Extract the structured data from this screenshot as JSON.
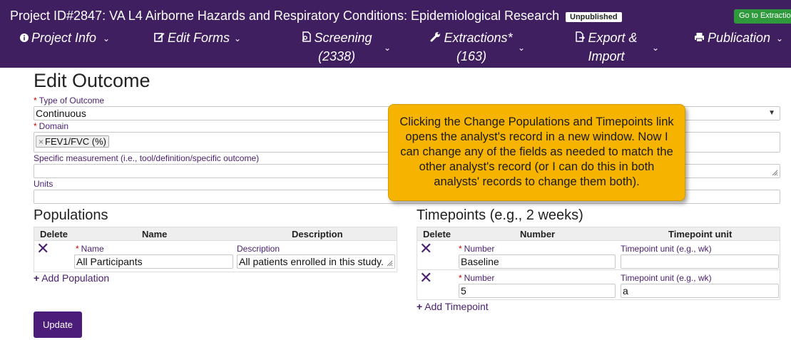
{
  "header": {
    "title": "Project ID#2847: VA L4 Airborne Hazards and Respiratory Conditions: Epidemiological Research",
    "badge": "Unpublished",
    "goto_button": "Go to Extractions"
  },
  "nav": {
    "project_info": "Project Info",
    "edit_forms": "Edit Forms",
    "screening_line1": "Screening",
    "screening_line2": "(2338)",
    "extractions_line1": "Extractions*",
    "extractions_line2": "(163)",
    "export_line1": "Export &",
    "export_line2": "Import",
    "publication": "Publication"
  },
  "form": {
    "heading": "Edit Outcome",
    "type_label": "Type of Outcome",
    "type_value": "Continuous",
    "domain_label": "Domain",
    "domain_chip": "FEV1/FVC (%)",
    "specific_label": "Specific measurement (i.e., tool/definition/specific outcome)",
    "specific_value": "",
    "units_label": "Units",
    "units_value": "",
    "update_button": "Update"
  },
  "populations": {
    "title": "Populations",
    "headers": {
      "delete": "Delete",
      "name": "Name",
      "description": "Description"
    },
    "rows": [
      {
        "name_label": "Name",
        "name_value": "All Participants",
        "desc_label": "Description",
        "desc_value": "All patients enrolled in this study."
      }
    ],
    "add_link": "Add Population"
  },
  "timepoints": {
    "title": "Timepoints (e.g., 2 weeks)",
    "headers": {
      "delete": "Delete",
      "number": "Number",
      "unit": "Timepoint unit"
    },
    "rows": [
      {
        "number_label": "Number",
        "number_value": "Baseline",
        "unit_label": "Timepoint unit (e.g., wk)",
        "unit_value": ""
      },
      {
        "number_label": "Number",
        "number_value": "5",
        "unit_label": "Timepoint unit (e.g., wk)",
        "unit_value": "a"
      }
    ],
    "add_link": "Add Timepoint"
  },
  "callout": {
    "text": "Clicking the Change Populations and Timepoints link opens the analyst's record in a new window. Now I can change any of the fields as needed to match the other analyst's record (or I can do this in both analysts' records to change them both)."
  },
  "icons": {
    "project_info": "info-circle-icon",
    "edit_forms": "edit-icon",
    "screening": "document-search-icon",
    "extractions": "wrench-icon",
    "export": "file-export-icon",
    "publication": "printer-icon",
    "delete": "close-x-icon",
    "add": "plus-icon"
  },
  "colors": {
    "header_bg": "#3f1f5f",
    "accent_purple": "#4b1c7a",
    "callout_bg": "#f6b400",
    "goto_green": "#2e9a3c"
  }
}
